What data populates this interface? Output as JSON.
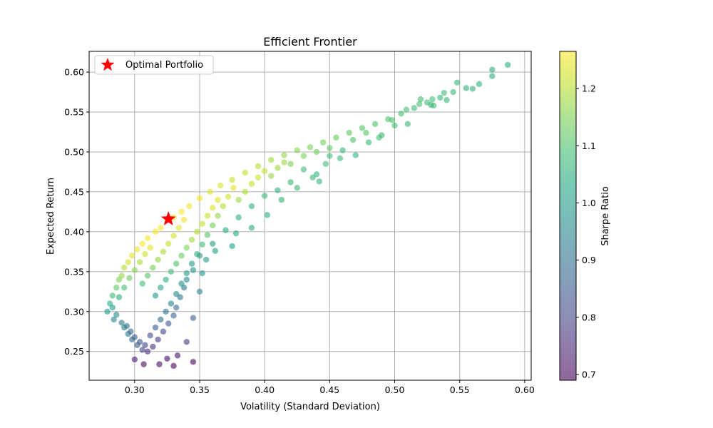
{
  "chart_data": {
    "type": "scatter",
    "title": "Efficient Frontier",
    "xlabel": "Volatility (Standard Deviation)",
    "ylabel": "Expected Return",
    "xlim": [
      0.265,
      0.605
    ],
    "ylim": [
      0.214,
      0.626
    ],
    "xticks": [
      0.3,
      0.35,
      0.4,
      0.45,
      0.5,
      0.55,
      0.6
    ],
    "xtick_labels": [
      "0.30",
      "0.35",
      "0.40",
      "0.45",
      "0.50",
      "0.55",
      "0.60"
    ],
    "yticks": [
      0.25,
      0.3,
      0.35,
      0.4,
      0.45,
      0.5,
      0.55,
      0.6
    ],
    "ytick_labels": [
      "0.25",
      "0.30",
      "0.35",
      "0.40",
      "0.45",
      "0.50",
      "0.55",
      "0.60"
    ],
    "grid": true,
    "colorbar": {
      "label": "Sharpe Ratio",
      "range": [
        0.69,
        1.265
      ],
      "ticks": [
        0.7,
        0.8,
        0.9,
        1.0,
        1.1,
        1.2
      ],
      "tick_labels": [
        "0.7",
        "0.8",
        "0.9",
        "1.0",
        "1.1",
        "1.2"
      ],
      "colormap": "viridis"
    },
    "legend": {
      "placement": "upper-left",
      "entries": [
        {
          "label": "Optimal Portfolio",
          "marker": "star",
          "color": "#ff0000"
        }
      ]
    },
    "optimal_portfolio": {
      "x": 0.326,
      "y": 0.416,
      "color": "#ff0000"
    },
    "series": [
      {
        "marker": "circle",
        "colormap": "viridis",
        "points": [
          [
            0.279,
            0.3,
            1.0
          ],
          [
            0.281,
            0.31,
            1.04
          ],
          [
            0.283,
            0.32,
            1.08
          ],
          [
            0.284,
            0.29,
            0.96
          ],
          [
            0.286,
            0.33,
            1.12
          ],
          [
            0.288,
            0.34,
            1.15
          ],
          [
            0.29,
            0.345,
            1.17
          ],
          [
            0.292,
            0.355,
            1.2
          ],
          [
            0.295,
            0.362,
            1.22
          ],
          [
            0.298,
            0.37,
            1.24
          ],
          [
            0.302,
            0.378,
            1.25
          ],
          [
            0.306,
            0.385,
            1.26
          ],
          [
            0.31,
            0.392,
            1.26
          ],
          [
            0.316,
            0.4,
            1.26
          ],
          [
            0.32,
            0.405,
            1.26
          ],
          [
            0.33,
            0.418,
            1.26
          ],
          [
            0.336,
            0.425,
            1.26
          ],
          [
            0.342,
            0.432,
            1.25
          ],
          [
            0.35,
            0.442,
            1.25
          ],
          [
            0.358,
            0.45,
            1.24
          ],
          [
            0.366,
            0.458,
            1.23
          ],
          [
            0.375,
            0.465,
            1.22
          ],
          [
            0.385,
            0.474,
            1.21
          ],
          [
            0.395,
            0.482,
            1.2
          ],
          [
            0.405,
            0.49,
            1.18
          ],
          [
            0.415,
            0.496,
            1.17
          ],
          [
            0.425,
            0.502,
            1.16
          ],
          [
            0.435,
            0.506,
            1.15
          ],
          [
            0.445,
            0.512,
            1.14
          ],
          [
            0.455,
            0.518,
            1.13
          ],
          [
            0.465,
            0.524,
            1.12
          ],
          [
            0.475,
            0.53,
            1.11
          ],
          [
            0.485,
            0.535,
            1.1
          ],
          [
            0.495,
            0.541,
            1.1
          ],
          [
            0.505,
            0.548,
            1.09
          ],
          [
            0.515,
            0.555,
            1.08
          ],
          [
            0.525,
            0.562,
            1.08
          ],
          [
            0.535,
            0.568,
            1.07
          ],
          [
            0.545,
            0.575,
            1.07
          ],
          [
            0.555,
            0.58,
            1.06
          ],
          [
            0.565,
            0.585,
            1.06
          ],
          [
            0.575,
            0.595,
            1.05
          ],
          [
            0.575,
            0.603,
            1.05
          ],
          [
            0.587,
            0.609,
            1.05
          ],
          [
            0.548,
            0.587,
            1.07
          ],
          [
            0.56,
            0.579,
            1.06
          ],
          [
            0.54,
            0.565,
            1.07
          ],
          [
            0.53,
            0.558,
            1.08
          ],
          [
            0.52,
            0.566,
            1.09
          ],
          [
            0.51,
            0.535,
            1.07
          ],
          [
            0.5,
            0.533,
            1.08
          ],
          [
            0.49,
            0.521,
            1.07
          ],
          [
            0.48,
            0.512,
            1.07
          ],
          [
            0.47,
            0.496,
            1.06
          ],
          [
            0.46,
            0.502,
            1.07
          ],
          [
            0.45,
            0.495,
            1.08
          ],
          [
            0.44,
            0.472,
            1.06
          ],
          [
            0.43,
            0.478,
            1.08
          ],
          [
            0.42,
            0.462,
            1.07
          ],
          [
            0.41,
            0.452,
            1.06
          ],
          [
            0.4,
            0.445,
            1.07
          ],
          [
            0.39,
            0.432,
            1.06
          ],
          [
            0.38,
            0.418,
            1.05
          ],
          [
            0.37,
            0.402,
            1.04
          ],
          [
            0.36,
            0.385,
            1.02
          ],
          [
            0.35,
            0.37,
            1.0
          ],
          [
            0.345,
            0.352,
            0.98
          ],
          [
            0.34,
            0.34,
            0.96
          ],
          [
            0.338,
            0.33,
            0.93
          ],
          [
            0.335,
            0.318,
            0.91
          ],
          [
            0.332,
            0.305,
            0.89
          ],
          [
            0.33,
            0.295,
            0.87
          ],
          [
            0.326,
            0.285,
            0.84
          ],
          [
            0.322,
            0.275,
            0.81
          ],
          [
            0.318,
            0.265,
            0.79
          ],
          [
            0.314,
            0.256,
            0.77
          ],
          [
            0.31,
            0.25,
            0.76
          ],
          [
            0.306,
            0.252,
            0.8
          ],
          [
            0.302,
            0.258,
            0.85
          ],
          [
            0.298,
            0.265,
            0.88
          ],
          [
            0.295,
            0.272,
            0.91
          ],
          [
            0.292,
            0.28,
            0.94
          ],
          [
            0.3,
            0.24,
            0.73
          ],
          [
            0.307,
            0.234,
            0.7
          ],
          [
            0.319,
            0.234,
            0.7
          ],
          [
            0.325,
            0.241,
            0.71
          ],
          [
            0.333,
            0.245,
            0.72
          ],
          [
            0.34,
            0.262,
            0.78
          ],
          [
            0.345,
            0.237,
            0.69
          ],
          [
            0.33,
            0.232,
            0.69
          ],
          [
            0.345,
            0.292,
            0.86
          ],
          [
            0.35,
            0.325,
            0.95
          ],
          [
            0.352,
            0.348,
            0.99
          ],
          [
            0.355,
            0.365,
            1.01
          ],
          [
            0.362,
            0.376,
            1.02
          ],
          [
            0.375,
            0.382,
            1.02
          ],
          [
            0.378,
            0.398,
            1.04
          ],
          [
            0.39,
            0.405,
            1.04
          ],
          [
            0.402,
            0.421,
            1.05
          ],
          [
            0.413,
            0.44,
            1.06
          ],
          [
            0.425,
            0.455,
            1.07
          ],
          [
            0.437,
            0.468,
            1.07
          ],
          [
            0.442,
            0.463,
            1.06
          ],
          [
            0.447,
            0.485,
            1.08
          ],
          [
            0.458,
            0.492,
            1.08
          ],
          [
            0.468,
            0.515,
            1.1
          ],
          [
            0.478,
            0.524,
            1.11
          ],
          [
            0.488,
            0.518,
            1.09
          ],
          [
            0.498,
            0.54,
            1.1
          ],
          [
            0.509,
            0.553,
            1.09
          ],
          [
            0.519,
            0.56,
            1.09
          ],
          [
            0.529,
            0.566,
            1.08
          ],
          [
            0.538,
            0.574,
            1.08
          ],
          [
            0.528,
            0.559,
            1.07
          ],
          [
            0.283,
            0.305,
            1.01
          ],
          [
            0.286,
            0.296,
            0.97
          ],
          [
            0.29,
            0.286,
            0.93
          ],
          [
            0.294,
            0.282,
            0.91
          ],
          [
            0.297,
            0.275,
            0.89
          ],
          [
            0.3,
            0.268,
            0.86
          ],
          [
            0.304,
            0.262,
            0.83
          ],
          [
            0.308,
            0.258,
            0.81
          ],
          [
            0.312,
            0.27,
            0.83
          ],
          [
            0.316,
            0.28,
            0.86
          ],
          [
            0.32,
            0.29,
            0.89
          ],
          [
            0.324,
            0.3,
            0.91
          ],
          [
            0.328,
            0.31,
            0.94
          ],
          [
            0.332,
            0.322,
            0.96
          ],
          [
            0.336,
            0.335,
            0.98
          ],
          [
            0.34,
            0.348,
            1.0
          ],
          [
            0.344,
            0.36,
            1.02
          ],
          [
            0.348,
            0.372,
            1.05
          ],
          [
            0.352,
            0.384,
            1.08
          ],
          [
            0.356,
            0.396,
            1.11
          ],
          [
            0.36,
            0.408,
            1.14
          ],
          [
            0.364,
            0.42,
            1.17
          ],
          [
            0.368,
            0.432,
            1.2
          ],
          [
            0.372,
            0.444,
            1.22
          ],
          [
            0.376,
            0.455,
            1.24
          ],
          [
            0.288,
            0.318,
            1.05
          ],
          [
            0.292,
            0.33,
            1.09
          ],
          [
            0.296,
            0.342,
            1.13
          ],
          [
            0.3,
            0.352,
            1.16
          ],
          [
            0.304,
            0.362,
            1.19
          ],
          [
            0.308,
            0.372,
            1.22
          ],
          [
            0.312,
            0.38,
            1.24
          ],
          [
            0.306,
            0.335,
            1.08
          ],
          [
            0.31,
            0.345,
            1.11
          ],
          [
            0.314,
            0.355,
            1.14
          ],
          [
            0.318,
            0.365,
            1.17
          ],
          [
            0.322,
            0.375,
            1.19
          ],
          [
            0.326,
            0.385,
            1.21
          ],
          [
            0.33,
            0.395,
            1.23
          ],
          [
            0.334,
            0.405,
            1.24
          ],
          [
            0.338,
            0.415,
            1.25
          ],
          [
            0.316,
            0.32,
            1.0
          ],
          [
            0.32,
            0.33,
            1.03
          ],
          [
            0.324,
            0.34,
            1.05
          ],
          [
            0.328,
            0.35,
            1.08
          ],
          [
            0.332,
            0.36,
            1.1
          ],
          [
            0.336,
            0.37,
            1.13
          ],
          [
            0.34,
            0.38,
            1.15
          ],
          [
            0.344,
            0.39,
            1.18
          ],
          [
            0.348,
            0.4,
            1.2
          ],
          [
            0.352,
            0.41,
            1.21
          ],
          [
            0.356,
            0.42,
            1.22
          ],
          [
            0.36,
            0.43,
            1.23
          ],
          [
            0.364,
            0.44,
            1.24
          ],
          [
            0.38,
            0.44,
            1.18
          ],
          [
            0.385,
            0.45,
            1.2
          ],
          [
            0.39,
            0.46,
            1.21
          ],
          [
            0.395,
            0.468,
            1.22
          ],
          [
            0.4,
            0.476,
            1.21
          ],
          [
            0.405,
            0.47,
            1.17
          ],
          [
            0.41,
            0.48,
            1.18
          ],
          [
            0.415,
            0.487,
            1.18
          ],
          [
            0.42,
            0.485,
            1.15
          ],
          [
            0.43,
            0.495,
            1.15
          ],
          [
            0.44,
            0.5,
            1.14
          ],
          [
            0.45,
            0.505,
            1.12
          ]
        ]
      }
    ]
  }
}
